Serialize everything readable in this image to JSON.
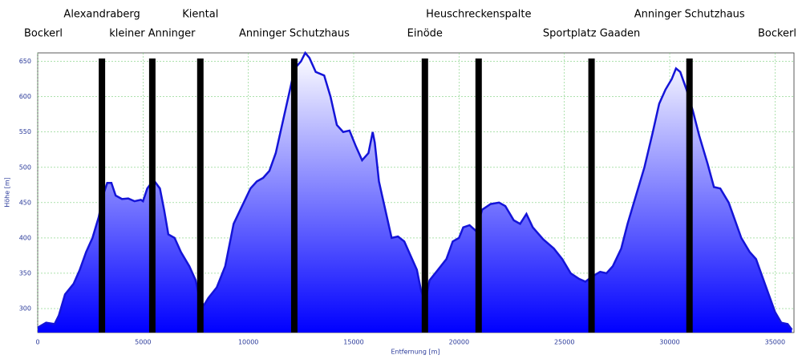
{
  "chart_data": {
    "type": "area",
    "xlabel": "Entfernung [m]",
    "ylabel": "Höhe [m]",
    "x": [
      0,
      400,
      800,
      1000,
      1300,
      1700,
      2000,
      2300,
      2600,
      2900,
      3100,
      3300,
      3500,
      3700,
      4000,
      4300,
      4600,
      4900,
      5000,
      5200,
      5500,
      5800,
      6000,
      6200,
      6500,
      6800,
      7200,
      7500,
      7700,
      7900,
      8100,
      8500,
      8900,
      9300,
      9700,
      10100,
      10400,
      10700,
      11000,
      11300,
      11600,
      11900,
      12200,
      12500,
      12700,
      12900,
      13200,
      13600,
      13900,
      14200,
      14500,
      14800,
      15100,
      15400,
      15700,
      15900,
      16000,
      16200,
      16500,
      16800,
      17100,
      17400,
      17700,
      18000,
      18200,
      18400,
      18600,
      19000,
      19400,
      19700,
      20000,
      20200,
      20500,
      20800,
      21100,
      21500,
      21900,
      22200,
      22600,
      22900,
      23200,
      23500,
      24000,
      24500,
      24900,
      25300,
      25700,
      26000,
      26300,
      26700,
      27000,
      27300,
      27700,
      28000,
      28400,
      28800,
      29200,
      29500,
      29800,
      30100,
      30300,
      30500,
      30800,
      31100,
      31400,
      31800,
      32100,
      32400,
      32800,
      33100,
      33400,
      33800,
      34100,
      34400,
      34700,
      35000,
      35300,
      35600,
      35800
    ],
    "values": [
      273,
      280,
      278,
      290,
      320,
      335,
      355,
      380,
      400,
      430,
      460,
      478,
      478,
      460,
      455,
      456,
      452,
      454,
      452,
      470,
      482,
      470,
      440,
      405,
      400,
      380,
      360,
      340,
      310,
      305,
      315,
      330,
      360,
      420,
      445,
      470,
      480,
      485,
      495,
      520,
      560,
      600,
      640,
      650,
      662,
      655,
      635,
      630,
      600,
      560,
      550,
      552,
      530,
      510,
      520,
      550,
      535,
      480,
      440,
      400,
      402,
      395,
      375,
      355,
      325,
      310,
      340,
      355,
      370,
      395,
      400,
      415,
      418,
      410,
      440,
      448,
      450,
      445,
      425,
      420,
      434,
      415,
      398,
      385,
      370,
      350,
      342,
      338,
      345,
      352,
      350,
      360,
      385,
      420,
      460,
      500,
      550,
      590,
      610,
      625,
      640,
      635,
      610,
      580,
      545,
      505,
      472,
      470,
      450,
      425,
      400,
      380,
      370,
      345,
      320,
      295,
      280,
      278,
      270
    ],
    "color": "#1414d8",
    "xlim": [
      0,
      35900
    ],
    "ylim": [
      266,
      662
    ],
    "xticks": [
      0,
      5000,
      10000,
      15000,
      20000,
      25000,
      30000,
      35000
    ],
    "yticks": [
      300,
      350,
      400,
      450,
      500,
      550,
      600,
      650
    ],
    "grid": true,
    "start_label": "Bockerl",
    "end_label": "Bockerl",
    "waypoints": [
      {
        "name": "Alexandraberg",
        "x": 3050
      },
      {
        "name": "kleiner Anninger",
        "x": 5440
      },
      {
        "name": "Kiental",
        "x": 7720
      },
      {
        "name": "Anninger Schutzhaus",
        "x": 12180
      },
      {
        "name": "Einöde",
        "x": 18380
      },
      {
        "name": "Heuschreckenspalte",
        "x": 20930
      },
      {
        "name": "Sportplatz Gaaden",
        "x": 26290
      },
      {
        "name": "Anninger Schutzhaus",
        "x": 30940
      }
    ]
  }
}
